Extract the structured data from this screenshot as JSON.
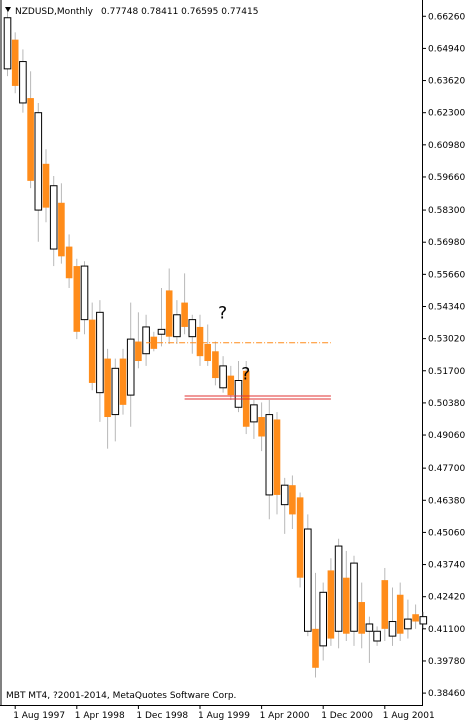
{
  "header": {
    "symbol_label": "NZDUSD,Monthly",
    "ohlc_label": "0.77748 0.78411 0.76595 0.77415",
    "menu_icon": "triangle-down-icon"
  },
  "footer": {
    "copyright": "MBT MT4, ?2001-2014, MetaQuotes Software Corp."
  },
  "annotations": [
    {
      "text": "?",
      "at_date": "1999-11",
      "price": 0.5385
    },
    {
      "text": "?",
      "at_date": "2000-02",
      "price": 0.5135
    }
  ],
  "levels": [
    {
      "name": "orange-dashdot-level",
      "price": 0.5285,
      "from": "1999-01",
      "to": "2001-01",
      "color": "#ff8c1a",
      "style": "dashdot"
    },
    {
      "name": "red-double-level",
      "price": 0.506,
      "from": "1999-06",
      "to": "2001-01",
      "color": "#e03030",
      "style": "double"
    }
  ],
  "colors": {
    "bull_body": "#ffffff",
    "bull_border": "#000000",
    "bear_body": "#ff8c1a",
    "wick": "#b8b8b8",
    "axis": "#000000"
  },
  "chart_data": {
    "type": "candlestick",
    "symbol": "NZDUSD",
    "timeframe": "Monthly",
    "y_range": [
      0.383,
      0.666
    ],
    "y_ticks": [
      "0.66260",
      "0.64940",
      "0.63620",
      "0.62300",
      "0.60980",
      "0.59660",
      "0.58300",
      "0.56980",
      "0.55660",
      "0.54340",
      "0.53020",
      "0.51700",
      "0.50380",
      "0.49060",
      "0.47700",
      "0.46380",
      "0.45060",
      "0.43740",
      "0.42420",
      "0.41100",
      "0.39780",
      "0.38460"
    ],
    "x_ticks": [
      {
        "label": "1 Aug 1997",
        "date": "1997-08"
      },
      {
        "label": "1 Apr 1998",
        "date": "1998-04"
      },
      {
        "label": "1 Dec 1998",
        "date": "1998-12"
      },
      {
        "label": "1 Aug 1999",
        "date": "1999-08"
      },
      {
        "label": "1 Apr 2000",
        "date": "2000-04"
      },
      {
        "label": "1 Dec 2000",
        "date": "2000-12"
      },
      {
        "label": "1 Aug 2001",
        "date": "2001-08"
      }
    ],
    "candles": [
      {
        "date": "1997-07",
        "o": 0.641,
        "h": 0.666,
        "l": 0.638,
        "c": 0.662
      },
      {
        "date": "1997-08",
        "o": 0.653,
        "h": 0.656,
        "l": 0.631,
        "c": 0.634
      },
      {
        "date": "1997-09",
        "o": 0.627,
        "h": 0.649,
        "l": 0.623,
        "c": 0.644
      },
      {
        "date": "1997-10",
        "o": 0.629,
        "h": 0.64,
        "l": 0.592,
        "c": 0.595
      },
      {
        "date": "1997-11",
        "o": 0.583,
        "h": 0.627,
        "l": 0.57,
        "c": 0.623
      },
      {
        "date": "1997-12",
        "o": 0.602,
        "h": 0.608,
        "l": 0.578,
        "c": 0.584
      },
      {
        "date": "1998-01",
        "o": 0.567,
        "h": 0.597,
        "l": 0.56,
        "c": 0.593
      },
      {
        "date": "1998-02",
        "o": 0.586,
        "h": 0.594,
        "l": 0.561,
        "c": 0.564
      },
      {
        "date": "1998-03",
        "o": 0.568,
        "h": 0.573,
        "l": 0.551,
        "c": 0.555
      },
      {
        "date": "1998-04",
        "o": 0.56,
        "h": 0.563,
        "l": 0.53,
        "c": 0.533
      },
      {
        "date": "1998-05",
        "o": 0.538,
        "h": 0.562,
        "l": 0.532,
        "c": 0.56
      },
      {
        "date": "1998-06",
        "o": 0.538,
        "h": 0.545,
        "l": 0.509,
        "c": 0.512
      },
      {
        "date": "1998-07",
        "o": 0.508,
        "h": 0.546,
        "l": 0.496,
        "c": 0.541
      },
      {
        "date": "1998-08",
        "o": 0.522,
        "h": 0.526,
        "l": 0.485,
        "c": 0.498
      },
      {
        "date": "1998-09",
        "o": 0.499,
        "h": 0.522,
        "l": 0.488,
        "c": 0.518
      },
      {
        "date": "1998-10",
        "o": 0.522,
        "h": 0.526,
        "l": 0.499,
        "c": 0.503
      },
      {
        "date": "1998-11",
        "o": 0.507,
        "h": 0.545,
        "l": 0.494,
        "c": 0.53
      },
      {
        "date": "1998-12",
        "o": 0.529,
        "h": 0.541,
        "l": 0.518,
        "c": 0.521
      },
      {
        "date": "1999-01",
        "o": 0.524,
        "h": 0.54,
        "l": 0.519,
        "c": 0.535
      },
      {
        "date": "1999-02",
        "o": 0.531,
        "h": 0.533,
        "l": 0.525,
        "c": 0.526
      },
      {
        "date": "1999-03",
        "o": 0.532,
        "h": 0.551,
        "l": 0.527,
        "c": 0.534
      },
      {
        "date": "1999-04",
        "o": 0.55,
        "h": 0.559,
        "l": 0.528,
        "c": 0.531
      },
      {
        "date": "1999-05",
        "o": 0.531,
        "h": 0.546,
        "l": 0.528,
        "c": 0.54
      },
      {
        "date": "1999-06",
        "o": 0.545,
        "h": 0.557,
        "l": 0.532,
        "c": 0.535
      },
      {
        "date": "1999-07",
        "o": 0.531,
        "h": 0.54,
        "l": 0.524,
        "c": 0.538
      },
      {
        "date": "1999-08",
        "o": 0.535,
        "h": 0.54,
        "l": 0.519,
        "c": 0.523
      },
      {
        "date": "1999-09",
        "o": 0.528,
        "h": 0.536,
        "l": 0.519,
        "c": 0.521
      },
      {
        "date": "1999-10",
        "o": 0.525,
        "h": 0.529,
        "l": 0.511,
        "c": 0.514
      },
      {
        "date": "1999-11",
        "o": 0.51,
        "h": 0.523,
        "l": 0.508,
        "c": 0.519
      },
      {
        "date": "1999-12",
        "o": 0.515,
        "h": 0.519,
        "l": 0.505,
        "c": 0.507
      },
      {
        "date": "2000-01",
        "o": 0.502,
        "h": 0.521,
        "l": 0.5,
        "c": 0.513
      },
      {
        "date": "2000-02",
        "o": 0.517,
        "h": 0.521,
        "l": 0.491,
        "c": 0.494
      },
      {
        "date": "2000-03",
        "o": 0.496,
        "h": 0.505,
        "l": 0.489,
        "c": 0.503
      },
      {
        "date": "2000-04",
        "o": 0.498,
        "h": 0.504,
        "l": 0.484,
        "c": 0.49
      },
      {
        "date": "2000-05",
        "o": 0.466,
        "h": 0.505,
        "l": 0.456,
        "c": 0.499
      },
      {
        "date": "2000-06",
        "o": 0.497,
        "h": 0.5,
        "l": 0.458,
        "c": 0.466
      },
      {
        "date": "2000-07",
        "o": 0.462,
        "h": 0.473,
        "l": 0.45,
        "c": 0.47
      },
      {
        "date": "2000-08",
        "o": 0.47,
        "h": 0.474,
        "l": 0.452,
        "c": 0.458
      },
      {
        "date": "2000-09",
        "o": 0.465,
        "h": 0.467,
        "l": 0.428,
        "c": 0.432
      },
      {
        "date": "2000-10",
        "o": 0.41,
        "h": 0.458,
        "l": 0.408,
        "c": 0.452
      },
      {
        "date": "2000-11",
        "o": 0.411,
        "h": 0.434,
        "l": 0.391,
        "c": 0.395
      },
      {
        "date": "2000-12",
        "o": 0.404,
        "h": 0.43,
        "l": 0.398,
        "c": 0.426
      },
      {
        "date": "2001-01",
        "o": 0.435,
        "h": 0.44,
        "l": 0.404,
        "c": 0.407
      },
      {
        "date": "2001-02",
        "o": 0.41,
        "h": 0.448,
        "l": 0.403,
        "c": 0.445
      },
      {
        "date": "2001-03",
        "o": 0.432,
        "h": 0.443,
        "l": 0.406,
        "c": 0.409
      },
      {
        "date": "2001-04",
        "o": 0.41,
        "h": 0.441,
        "l": 0.404,
        "c": 0.438
      },
      {
        "date": "2001-05",
        "o": 0.422,
        "h": 0.43,
        "l": 0.403,
        "c": 0.409
      },
      {
        "date": "2001-06",
        "o": 0.41,
        "h": 0.416,
        "l": 0.397,
        "c": 0.413
      },
      {
        "date": "2001-07",
        "o": 0.406,
        "h": 0.412,
        "l": 0.404,
        "c": 0.41
      },
      {
        "date": "2001-08",
        "o": 0.431,
        "h": 0.436,
        "l": 0.406,
        "c": 0.411
      },
      {
        "date": "2001-09",
        "o": 0.408,
        "h": 0.428,
        "l": 0.404,
        "c": 0.414
      },
      {
        "date": "2001-10",
        "o": 0.425,
        "h": 0.43,
        "l": 0.406,
        "c": 0.409
      },
      {
        "date": "2001-11",
        "o": 0.411,
        "h": 0.423,
        "l": 0.407,
        "c": 0.415
      },
      {
        "date": "2001-12",
        "o": 0.417,
        "h": 0.421,
        "l": 0.411,
        "c": 0.414
      },
      {
        "date": "2002-01",
        "o": 0.413,
        "h": 0.418,
        "l": 0.411,
        "c": 0.416
      }
    ]
  }
}
